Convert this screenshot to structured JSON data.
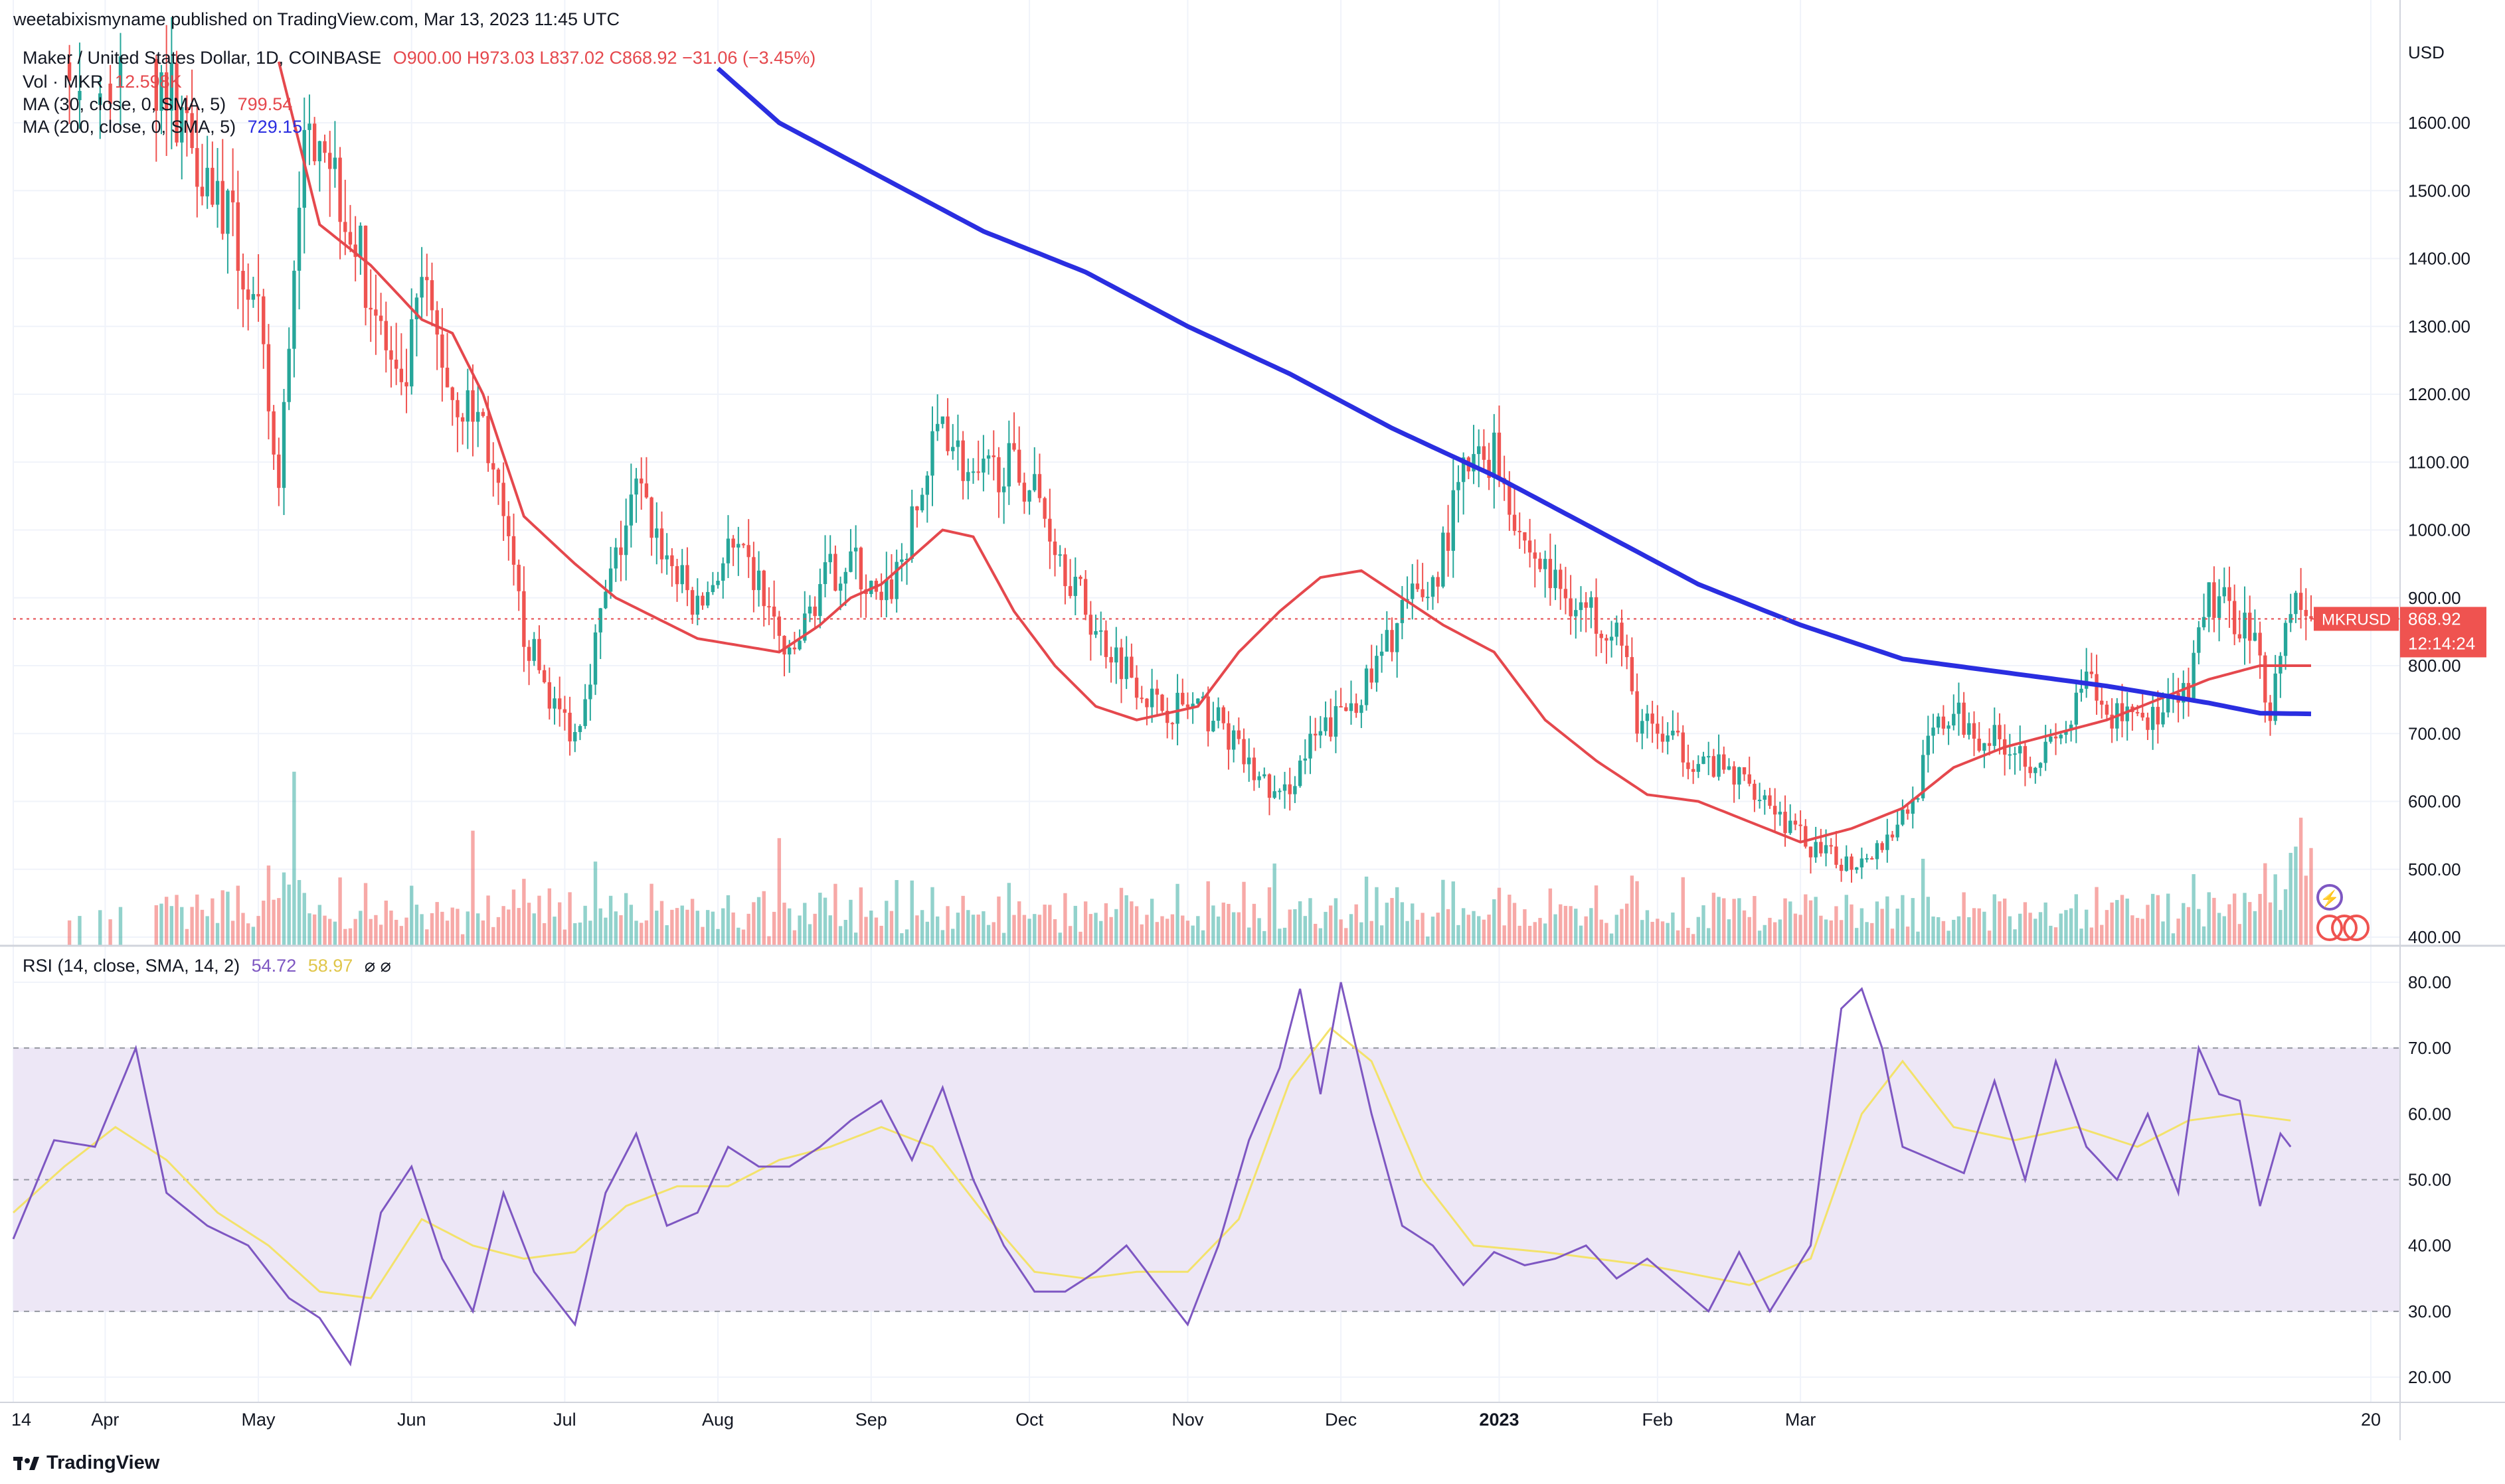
{
  "header": {
    "published_line": "weetabixismyname published on TradingView.com, Mar 13, 2023 11:45 UTC"
  },
  "symbol_legend": {
    "title": "Maker / United States Dollar, 1D, COINBASE",
    "ohlc": "O900.00  H973.03  L837.02  C868.92  −31.06 (−3.45%)"
  },
  "indicators": [
    {
      "label": "Vol · MKR",
      "value": "12.598K",
      "color": "#e5484d"
    },
    {
      "label": "MA (30, close, 0, SMA, 5)",
      "value": "799.54",
      "color": "#e5484d"
    },
    {
      "label": "MA (200, close, 0, SMA, 5)",
      "value": "729.15",
      "color": "#2a2ee0"
    }
  ],
  "rsi_legend": {
    "label": "RSI (14, close, SMA, 14, 2)",
    "value1": "54.72",
    "value2": "58.97",
    "icons": "⌀  ⌀"
  },
  "price_axis": {
    "currency": "USD",
    "ticks": [
      "1600.00",
      "1500.00",
      "1400.00",
      "1300.00",
      "1200.00",
      "1100.00",
      "1000.00",
      "900.00",
      "800.00",
      "700.00",
      "600.00",
      "500.00",
      "400.00"
    ]
  },
  "rsi_axis": {
    "ticks": [
      "80.00",
      "70.00",
      "60.00",
      "50.00",
      "40.00",
      "30.00",
      "20.00"
    ]
  },
  "time_axis": {
    "labels": [
      "14",
      "Apr",
      "May",
      "Jun",
      "Jul",
      "Aug",
      "Sep",
      "Oct",
      "Nov",
      "Dec",
      "2023",
      "Feb",
      "Mar",
      "20"
    ]
  },
  "last_price_tag": {
    "symbol": "MKRUSD",
    "price": "868.92",
    "countdown": "12:14:24"
  },
  "footer": {
    "brand": "TradingView"
  },
  "colors": {
    "up": "#26a69a",
    "down": "#ef5350",
    "ma30": "#e5484d",
    "ma200": "#2a2ee0",
    "rsi": "#7e57c2",
    "rsi_ma": "#f3e26b",
    "rsi_band": "#ede7f6"
  },
  "chart_data": {
    "type": "candlestick",
    "ylim": [
      400,
      1680
    ],
    "rsi_ylim": [
      15,
      85
    ],
    "rsi_bands": [
      30,
      50,
      70
    ],
    "days": 365,
    "close_anchors": [
      [
        0,
        1720
      ],
      [
        10,
        1680
      ],
      [
        20,
        1650
      ],
      [
        30,
        1660
      ],
      [
        42,
        1460
      ],
      [
        48,
        1300
      ],
      [
        52,
        1050
      ],
      [
        56,
        1520
      ],
      [
        60,
        1620
      ],
      [
        64,
        1500
      ],
      [
        70,
        1350
      ],
      [
        76,
        1180
      ],
      [
        80,
        1360
      ],
      [
        86,
        1200
      ],
      [
        92,
        1160
      ],
      [
        96,
        1000
      ],
      [
        100,
        850
      ],
      [
        106,
        740
      ],
      [
        110,
        700
      ],
      [
        116,
        900
      ],
      [
        122,
        1060
      ],
      [
        128,
        960
      ],
      [
        134,
        880
      ],
      [
        140,
        970
      ],
      [
        146,
        920
      ],
      [
        152,
        800
      ],
      [
        158,
        920
      ],
      [
        164,
        960
      ],
      [
        170,
        880
      ],
      [
        176,
        1000
      ],
      [
        182,
        1170
      ],
      [
        188,
        1060
      ],
      [
        194,
        1100
      ],
      [
        200,
        1060
      ],
      [
        206,
        950
      ],
      [
        212,
        850
      ],
      [
        218,
        800
      ],
      [
        224,
        740
      ],
      [
        230,
        740
      ],
      [
        236,
        720
      ],
      [
        242,
        650
      ],
      [
        248,
        600
      ],
      [
        254,
        680
      ],
      [
        260,
        730
      ],
      [
        266,
        780
      ],
      [
        272,
        880
      ],
      [
        278,
        920
      ],
      [
        284,
        1080
      ],
      [
        290,
        1120
      ],
      [
        296,
        980
      ],
      [
        302,
        920
      ],
      [
        308,
        880
      ],
      [
        314,
        860
      ],
      [
        318,
        720
      ],
      [
        322,
        700
      ],
      [
        330,
        660
      ],
      [
        336,
        640
      ],
      [
        342,
        620
      ],
      [
        348,
        560
      ],
      [
        354,
        520
      ],
      [
        360,
        510
      ],
      [
        366,
        540
      ],
      [
        372,
        600
      ],
      [
        376,
        700
      ],
      [
        380,
        730
      ],
      [
        384,
        700
      ],
      [
        390,
        690
      ],
      [
        396,
        660
      ],
      [
        402,
        700
      ],
      [
        406,
        780
      ],
      [
        410,
        720
      ],
      [
        414,
        740
      ],
      [
        420,
        720
      ],
      [
        426,
        760
      ],
      [
        430,
        900
      ],
      [
        434,
        880
      ],
      [
        438,
        860
      ],
      [
        442,
        740
      ],
      [
        446,
        900
      ],
      [
        450,
        869
      ]
    ],
    "ma30_anchors": [
      [
        52,
        1690
      ],
      [
        60,
        1450
      ],
      [
        70,
        1390
      ],
      [
        80,
        1310
      ],
      [
        86,
        1290
      ],
      [
        92,
        1200
      ],
      [
        100,
        1020
      ],
      [
        110,
        950
      ],
      [
        118,
        900
      ],
      [
        126,
        870
      ],
      [
        134,
        840
      ],
      [
        142,
        830
      ],
      [
        150,
        820
      ],
      [
        158,
        860
      ],
      [
        164,
        900
      ],
      [
        170,
        920
      ],
      [
        176,
        960
      ],
      [
        182,
        1000
      ],
      [
        188,
        990
      ],
      [
        196,
        880
      ],
      [
        204,
        800
      ],
      [
        212,
        740
      ],
      [
        220,
        720
      ],
      [
        232,
        740
      ],
      [
        240,
        820
      ],
      [
        248,
        880
      ],
      [
        256,
        930
      ],
      [
        264,
        940
      ],
      [
        272,
        900
      ],
      [
        280,
        860
      ],
      [
        290,
        820
      ],
      [
        300,
        720
      ],
      [
        310,
        660
      ],
      [
        320,
        610
      ],
      [
        330,
        600
      ],
      [
        340,
        570
      ],
      [
        350,
        540
      ],
      [
        360,
        560
      ],
      [
        370,
        590
      ],
      [
        380,
        650
      ],
      [
        390,
        680
      ],
      [
        400,
        700
      ],
      [
        410,
        720
      ],
      [
        420,
        750
      ],
      [
        430,
        780
      ],
      [
        440,
        800
      ],
      [
        450,
        800
      ]
    ],
    "ma200_anchors": [
      [
        138,
        1680
      ],
      [
        150,
        1600
      ],
      [
        170,
        1520
      ],
      [
        190,
        1440
      ],
      [
        210,
        1380
      ],
      [
        230,
        1300
      ],
      [
        250,
        1230
      ],
      [
        270,
        1150
      ],
      [
        290,
        1080
      ],
      [
        310,
        1000
      ],
      [
        330,
        920
      ],
      [
        350,
        860
      ],
      [
        370,
        810
      ],
      [
        390,
        790
      ],
      [
        410,
        770
      ],
      [
        430,
        745
      ],
      [
        440,
        730
      ],
      [
        450,
        729
      ]
    ],
    "rsi_anchors": [
      [
        0,
        41
      ],
      [
        8,
        56
      ],
      [
        16,
        55
      ],
      [
        24,
        70
      ],
      [
        30,
        48
      ],
      [
        38,
        43
      ],
      [
        46,
        40
      ],
      [
        54,
        32
      ],
      [
        60,
        29
      ],
      [
        66,
        22
      ],
      [
        72,
        45
      ],
      [
        78,
        52
      ],
      [
        84,
        38
      ],
      [
        90,
        30
      ],
      [
        96,
        48
      ],
      [
        102,
        36
      ],
      [
        110,
        28
      ],
      [
        116,
        48
      ],
      [
        122,
        57
      ],
      [
        128,
        43
      ],
      [
        134,
        45
      ],
      [
        140,
        55
      ],
      [
        146,
        52
      ],
      [
        152,
        52
      ],
      [
        158,
        55
      ],
      [
        164,
        59
      ],
      [
        170,
        62
      ],
      [
        176,
        53
      ],
      [
        182,
        64
      ],
      [
        188,
        50
      ],
      [
        194,
        40
      ],
      [
        200,
        33
      ],
      [
        206,
        33
      ],
      [
        212,
        36
      ],
      [
        218,
        40
      ],
      [
        224,
        34
      ],
      [
        230,
        28
      ],
      [
        236,
        40
      ],
      [
        242,
        56
      ],
      [
        248,
        67
      ],
      [
        252,
        79
      ],
      [
        256,
        63
      ],
      [
        260,
        80
      ],
      [
        266,
        60
      ],
      [
        272,
        43
      ],
      [
        278,
        40
      ],
      [
        284,
        34
      ],
      [
        290,
        39
      ],
      [
        296,
        37
      ],
      [
        302,
        38
      ],
      [
        308,
        40
      ],
      [
        314,
        35
      ],
      [
        320,
        38
      ],
      [
        326,
        34
      ],
      [
        332,
        30
      ],
      [
        338,
        39
      ],
      [
        344,
        30
      ],
      [
        352,
        40
      ],
      [
        358,
        76
      ],
      [
        362,
        79
      ],
      [
        366,
        70
      ],
      [
        370,
        55
      ],
      [
        376,
        53
      ],
      [
        382,
        51
      ],
      [
        388,
        65
      ],
      [
        394,
        50
      ],
      [
        400,
        68
      ],
      [
        406,
        55
      ],
      [
        412,
        50
      ],
      [
        418,
        60
      ],
      [
        424,
        48
      ],
      [
        428,
        70
      ],
      [
        432,
        63
      ],
      [
        436,
        62
      ],
      [
        440,
        46
      ],
      [
        444,
        57
      ],
      [
        446,
        55
      ]
    ],
    "rsi_ma_anchors": [
      [
        0,
        45
      ],
      [
        10,
        52
      ],
      [
        20,
        58
      ],
      [
        30,
        53
      ],
      [
        40,
        45
      ],
      [
        50,
        40
      ],
      [
        60,
        33
      ],
      [
        70,
        32
      ],
      [
        80,
        44
      ],
      [
        90,
        40
      ],
      [
        100,
        38
      ],
      [
        110,
        39
      ],
      [
        120,
        46
      ],
      [
        130,
        49
      ],
      [
        140,
        49
      ],
      [
        150,
        53
      ],
      [
        160,
        55
      ],
      [
        170,
        58
      ],
      [
        180,
        55
      ],
      [
        190,
        45
      ],
      [
        200,
        36
      ],
      [
        210,
        35
      ],
      [
        220,
        36
      ],
      [
        230,
        36
      ],
      [
        240,
        44
      ],
      [
        250,
        65
      ],
      [
        258,
        73
      ],
      [
        266,
        68
      ],
      [
        276,
        50
      ],
      [
        286,
        40
      ],
      [
        300,
        39
      ],
      [
        320,
        37
      ],
      [
        340,
        34
      ],
      [
        352,
        38
      ],
      [
        362,
        60
      ],
      [
        370,
        68
      ],
      [
        380,
        58
      ],
      [
        392,
        56
      ],
      [
        404,
        58
      ],
      [
        416,
        55
      ],
      [
        426,
        59
      ],
      [
        436,
        60
      ],
      [
        446,
        59
      ]
    ]
  }
}
